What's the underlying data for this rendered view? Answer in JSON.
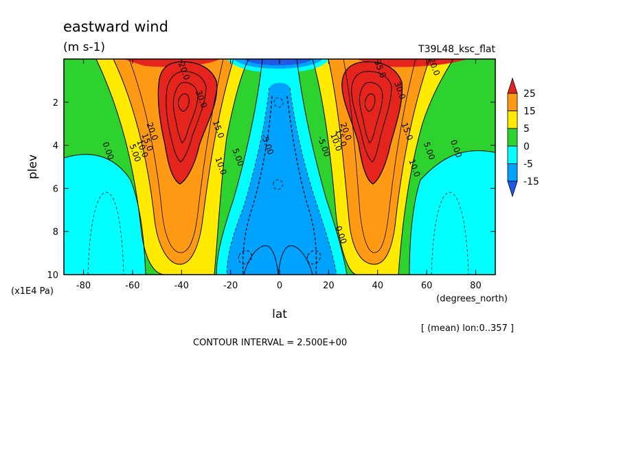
{
  "chart_data": {
    "type": "heatmap",
    "title": "eastward wind",
    "units": "(m s-1)",
    "run_label": "T39L48_ksc_flat",
    "xlabel": "lat",
    "x_unit_label": "(degrees_north)",
    "ylabel": "plev",
    "y_unit_label": "(x1E4 Pa)",
    "x_ticks": [
      "-80",
      "-60",
      "-40",
      "-20",
      "0",
      "20",
      "40",
      "60",
      "80"
    ],
    "y_ticks": [
      "2",
      "4",
      "6",
      "8",
      "10"
    ],
    "xlim": [
      -88,
      88
    ],
    "ylim": [
      0,
      10
    ],
    "y_inverted": true,
    "mean_note": "[ (mean) lon:0..357 ]",
    "contour_interval": "CONTOUR INTERVAL = 2.500E+00",
    "colorbar": {
      "labels": [
        "25",
        "15",
        "5",
        "0",
        "-5",
        "-15"
      ],
      "colors": [
        "#e6241e",
        "#ff9a14",
        "#ffea00",
        "#2ed22e",
        "#00ffff",
        "#00a2ff",
        "#1e5ae6"
      ]
    },
    "contour_labels": [
      {
        "text": "20.0",
        "x": -40,
        "y": 0.6
      },
      {
        "text": "30.0",
        "x": -33,
        "y": 1.9
      },
      {
        "text": "15.0",
        "x": -26,
        "y": 3.3
      },
      {
        "text": "20.0",
        "x": -53,
        "y": 3.4
      },
      {
        "text": "15.0",
        "x": -55,
        "y": 3.9
      },
      {
        "text": "10.0",
        "x": -57,
        "y": 4.2
      },
      {
        "text": "5.00",
        "x": -60,
        "y": 4.4
      },
      {
        "text": "0.00",
        "x": -71,
        "y": 4.3
      },
      {
        "text": "10.0",
        "x": -25,
        "y": 5.0
      },
      {
        "text": "5.00",
        "x": -18,
        "y": 4.6
      },
      {
        "text": "-5.00",
        "x": -6,
        "y": 4.0
      },
      {
        "text": "-5.00",
        "x": 17,
        "y": 4.1
      },
      {
        "text": "10.0",
        "x": 22,
        "y": 3.9
      },
      {
        "text": "15.0",
        "x": 24,
        "y": 3.7
      },
      {
        "text": "20.0",
        "x": 26,
        "y": 3.4
      },
      {
        "text": "35.0",
        "x": 40,
        "y": 0.5
      },
      {
        "text": "30.0",
        "x": 48,
        "y": 1.5
      },
      {
        "text": "15.0",
        "x": 51,
        "y": 3.4
      },
      {
        "text": "20.0",
        "x": 62,
        "y": 0.4
      },
      {
        "text": "10.0",
        "x": 54,
        "y": 5.1
      },
      {
        "text": "5.00",
        "x": 60,
        "y": 4.3
      },
      {
        "text": "0.00",
        "x": 71,
        "y": 4.2
      },
      {
        "text": "0.00",
        "x": 24,
        "y": 8.2
      }
    ]
  }
}
